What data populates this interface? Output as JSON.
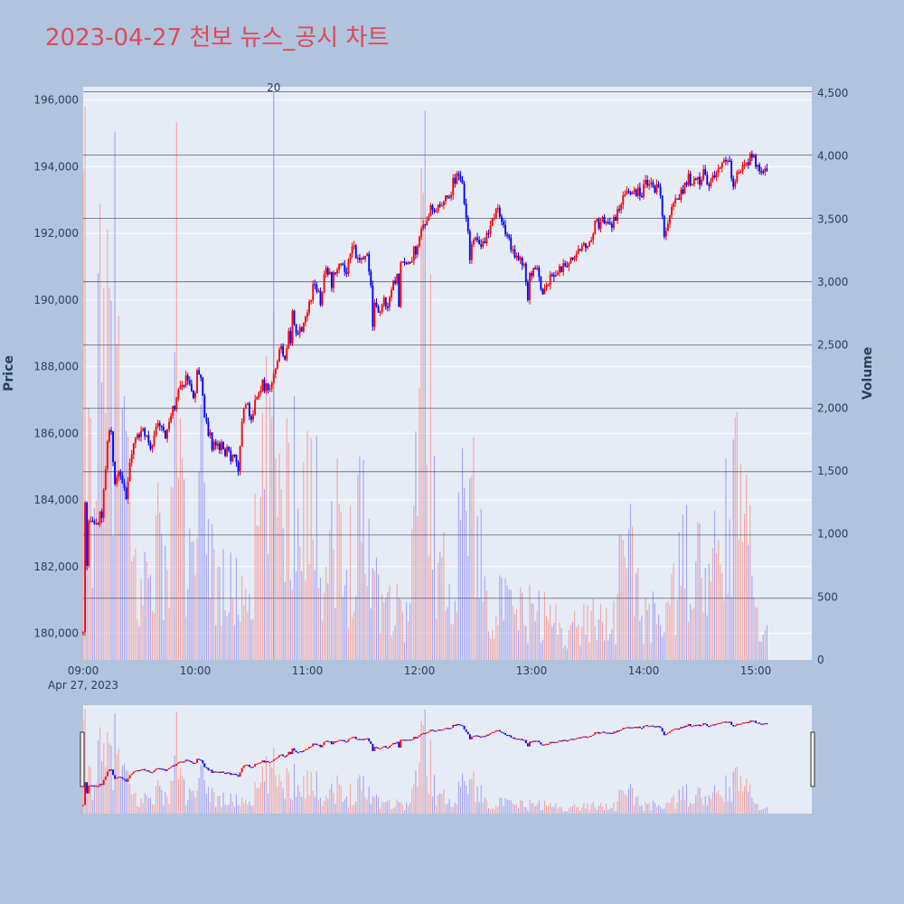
{
  "title": "2023-04-27 천보 뉴스_공시 차트",
  "colors": {
    "title": "#e0495a",
    "background": "#b0c4de",
    "plot_bg": "#e5ecf6",
    "up": "#ff0000",
    "down": "#0000ff",
    "vol_up": "#f4a6a6",
    "vol_down": "#a6a6f4",
    "hline": "#4a4a5a",
    "news_line": "#6a8cf0"
  },
  "chart_data": {
    "type": "candlestick",
    "title": "2023-04-27 천보 뉴스_공시 차트",
    "ylabel": "Price",
    "y2label": "Volume",
    "ylim": [
      179200,
      196400
    ],
    "y2lim": [
      0,
      4550
    ],
    "price_ticks": [
      "180,000",
      "182,000",
      "184,000",
      "186,000",
      "188,000",
      "190,000",
      "192,000",
      "194,000",
      "196,000"
    ],
    "price_tick_values": [
      180000,
      182000,
      184000,
      186000,
      188000,
      190000,
      192000,
      194000,
      196000
    ],
    "volume_ticks": [
      "0",
      "500",
      "1,000",
      "1,500",
      "2,000",
      "2,500",
      "3,000",
      "3,500",
      "4,000",
      "4,500"
    ],
    "volume_tick_values": [
      0,
      500,
      1000,
      1500,
      2000,
      2500,
      3000,
      3500,
      4000,
      4500
    ],
    "x_ticks": [
      "09:00",
      "10:00",
      "11:00",
      "12:00",
      "13:00",
      "14:00",
      "15:00"
    ],
    "x_tick_minutes": [
      0,
      60,
      120,
      180,
      240,
      300,
      360
    ],
    "x_date_label": "Apr 27, 2023",
    "x_range_minutes": [
      0,
      390
    ],
    "horizontal_levels": [
      181050,
      182950,
      184850,
      186750,
      188650,
      190550,
      192450,
      194350,
      196250
    ],
    "news_marker": {
      "label": "20",
      "minute": 102
    },
    "price_path": [
      [
        0,
        180000
      ],
      [
        1,
        183900
      ],
      [
        2,
        182000
      ],
      [
        3,
        183500
      ],
      [
        5,
        183200
      ],
      [
        7,
        183400
      ],
      [
        10,
        183500
      ],
      [
        13,
        185800
      ],
      [
        15,
        186000
      ],
      [
        17,
        184500
      ],
      [
        20,
        184800
      ],
      [
        23,
        184000
      ],
      [
        25,
        185200
      ],
      [
        28,
        185800
      ],
      [
        32,
        186000
      ],
      [
        36,
        185600
      ],
      [
        40,
        186200
      ],
      [
        44,
        186000
      ],
      [
        48,
        186700
      ],
      [
        50,
        187000
      ],
      [
        52,
        187400
      ],
      [
        55,
        187700
      ],
      [
        57,
        187300
      ],
      [
        59,
        186900
      ],
      [
        61,
        187800
      ],
      [
        63,
        187500
      ],
      [
        65,
        186400
      ],
      [
        67,
        186000
      ],
      [
        70,
        185900
      ],
      [
        75,
        185500
      ],
      [
        80,
        185300
      ],
      [
        83,
        185000
      ],
      [
        85,
        186500
      ],
      [
        88,
        186800
      ],
      [
        90,
        186400
      ],
      [
        93,
        187200
      ],
      [
        96,
        187500
      ],
      [
        100,
        187200
      ],
      [
        103,
        188000
      ],
      [
        105,
        188500
      ],
      [
        108,
        188400
      ],
      [
        110,
        189000
      ],
      [
        112,
        189700
      ],
      [
        115,
        188900
      ],
      [
        118,
        189400
      ],
      [
        121,
        189900
      ],
      [
        124,
        190500
      ],
      [
        127,
        190000
      ],
      [
        130,
        191000
      ],
      [
        133,
        190500
      ],
      [
        137,
        191200
      ],
      [
        140,
        190800
      ],
      [
        144,
        191500
      ],
      [
        148,
        191300
      ],
      [
        152,
        191400
      ],
      [
        155,
        190200
      ],
      [
        158,
        189500
      ],
      [
        160,
        190000
      ],
      [
        163,
        189800
      ],
      [
        166,
        190500
      ],
      [
        170,
        191100
      ],
      [
        173,
        190900
      ],
      [
        176,
        191300
      ],
      [
        180,
        191800
      ],
      [
        183,
        192400
      ],
      [
        186,
        192700
      ],
      [
        190,
        192900
      ],
      [
        195,
        193000
      ],
      [
        198,
        193500
      ],
      [
        200,
        193700
      ],
      [
        203,
        193600
      ],
      [
        205,
        192400
      ],
      [
        207,
        191700
      ],
      [
        210,
        191900
      ],
      [
        214,
        191600
      ],
      [
        218,
        192300
      ],
      [
        222,
        192900
      ],
      [
        226,
        191900
      ],
      [
        230,
        191500
      ],
      [
        234,
        191300
      ],
      [
        238,
        190500
      ],
      [
        242,
        191000
      ],
      [
        246,
        190300
      ],
      [
        250,
        190600
      ],
      [
        254,
        190900
      ],
      [
        258,
        191000
      ],
      [
        262,
        191200
      ],
      [
        266,
        191400
      ],
      [
        270,
        191700
      ],
      [
        274,
        192200
      ],
      [
        278,
        192400
      ],
      [
        282,
        192100
      ],
      [
        286,
        192700
      ],
      [
        290,
        193100
      ],
      [
        294,
        193400
      ],
      [
        298,
        193200
      ],
      [
        302,
        193500
      ],
      [
        306,
        193400
      ],
      [
        309,
        193200
      ],
      [
        311,
        192200
      ],
      [
        313,
        192300
      ],
      [
        316,
        192900
      ],
      [
        320,
        193300
      ],
      [
        324,
        193600
      ],
      [
        328,
        193500
      ],
      [
        332,
        193800
      ],
      [
        335,
        193500
      ],
      [
        338,
        193700
      ],
      [
        342,
        194100
      ],
      [
        345,
        194300
      ],
      [
        348,
        193600
      ],
      [
        351,
        193900
      ],
      [
        355,
        194200
      ],
      [
        359,
        194300
      ],
      [
        362,
        193900
      ],
      [
        366,
        194000
      ]
    ],
    "dips": [
      [
        69,
        185500
      ],
      [
        111,
        188700
      ],
      [
        155,
        189200
      ],
      [
        169,
        189800
      ],
      [
        207,
        191200
      ],
      [
        238,
        190000
      ],
      [
        311,
        191900
      ],
      [
        348,
        193400
      ]
    ],
    "volume_profile": [
      [
        0,
        3800
      ],
      [
        1,
        3700
      ],
      [
        2,
        2200
      ],
      [
        4,
        2100
      ],
      [
        6,
        2300
      ],
      [
        8,
        3350
      ],
      [
        10,
        2700
      ],
      [
        13,
        3000
      ],
      [
        15,
        3650
      ],
      [
        16,
        3900
      ],
      [
        20,
        2700
      ],
      [
        25,
        1300
      ],
      [
        30,
        600
      ],
      [
        40,
        1400
      ],
      [
        45,
        700
      ],
      [
        50,
        3700
      ],
      [
        55,
        900
      ],
      [
        60,
        1000
      ],
      [
        65,
        2200
      ],
      [
        70,
        900
      ],
      [
        80,
        700
      ],
      [
        90,
        800
      ],
      [
        98,
        2100
      ],
      [
        103,
        2400
      ],
      [
        110,
        1800
      ],
      [
        118,
        2100
      ],
      [
        125,
        1500
      ],
      [
        130,
        1000
      ],
      [
        135,
        1600
      ],
      [
        140,
        700
      ],
      [
        147,
        1800
      ],
      [
        155,
        1000
      ],
      [
        165,
        600
      ],
      [
        175,
        500
      ],
      [
        182,
        4300
      ],
      [
        185,
        3250
      ],
      [
        190,
        800
      ],
      [
        200,
        1000
      ],
      [
        205,
        2300
      ],
      [
        215,
        700
      ],
      [
        230,
        500
      ],
      [
        245,
        500
      ],
      [
        260,
        300
      ],
      [
        275,
        500
      ],
      [
        285,
        400
      ],
      [
        290,
        1500
      ],
      [
        300,
        400
      ],
      [
        315,
        600
      ],
      [
        324,
        1150
      ],
      [
        335,
        800
      ],
      [
        345,
        1450
      ],
      [
        352,
        1850
      ],
      [
        360,
        600
      ],
      [
        366,
        500
      ],
      [
        373,
        3600
      ]
    ]
  }
}
